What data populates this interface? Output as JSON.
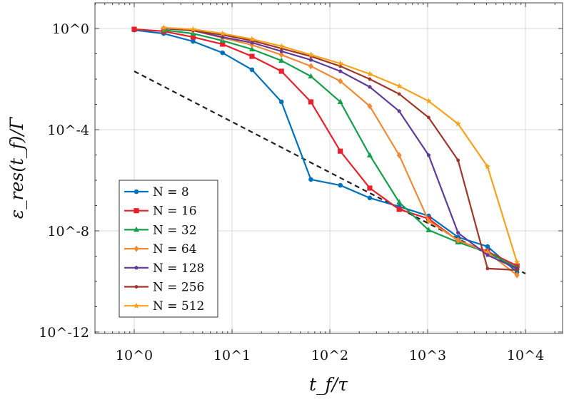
{
  "chart_data": {
    "type": "line",
    "xlabel": "t_f/τ",
    "ylabel": "ε_res(t_f)/Γ",
    "x_scale": "log",
    "y_scale": "log",
    "xlim": [
      0.4,
      25000
    ],
    "ylim": [
      8.7e-13,
      10
    ],
    "x_ticks": [
      "10^0",
      "10^1",
      "10^2",
      "10^3",
      "10^4"
    ],
    "y_ticks": [
      "10^0",
      "10^-4",
      "10^-8",
      "10^-12"
    ],
    "grid": true,
    "legend_position": "bottom-left",
    "series": [
      {
        "name": "N = 8",
        "color": "#0072bd",
        "marker": "circle",
        "x": [
          1,
          2,
          4,
          8,
          16,
          32,
          64,
          128,
          256,
          512,
          1024,
          2048,
          4096,
          8192
        ],
        "log10_y": [
          -0.06,
          -0.2,
          -0.51,
          -0.96,
          -1.63,
          -2.9,
          -5.97,
          -6.2,
          -6.7,
          -7.04,
          -7.41,
          -8.25,
          -8.62,
          -9.63
        ]
      },
      {
        "name": "N = 16",
        "color": "#e8202c",
        "marker": "square",
        "x": [
          1,
          2,
          4,
          8,
          16,
          32,
          64,
          128,
          256,
          512,
          1024,
          2048,
          4096,
          8192
        ],
        "log10_y": [
          -0.03,
          -0.11,
          -0.34,
          -0.62,
          -1.1,
          -1.69,
          -2.9,
          -4.85,
          -6.31,
          -7.15,
          -7.52,
          -8.39,
          -8.82,
          -9.38
        ]
      },
      {
        "name": "N = 32",
        "color": "#12a04a",
        "marker": "triangle",
        "x": [
          2,
          4,
          8,
          16,
          32,
          64,
          128,
          256,
          512,
          1024,
          2048,
          4096,
          8192
        ],
        "log10_y": [
          -0.06,
          -0.2,
          -0.48,
          -0.82,
          -1.27,
          -1.89,
          -2.9,
          -5.01,
          -6.87,
          -7.97,
          -8.45,
          -8.85,
          -9.46
        ]
      },
      {
        "name": "N = 64",
        "color": "#f28a35",
        "marker": "diamond",
        "x": [
          2,
          4,
          8,
          16,
          32,
          64,
          128,
          256,
          512,
          1024,
          2048,
          4096,
          8192
        ],
        "log10_y": [
          0,
          -0.08,
          -0.37,
          -0.65,
          -1.04,
          -1.49,
          -2.08,
          -3.07,
          -5.01,
          -7.61,
          -8.37,
          -8.85,
          -9.75
        ]
      },
      {
        "name": "N = 128",
        "color": "#5e3c99",
        "marker": "pentagon",
        "x": [
          2,
          4,
          8,
          16,
          32,
          64,
          128,
          256,
          512,
          1024,
          2048,
          4096,
          8192
        ],
        "log10_y": [
          0,
          -0.08,
          -0.34,
          -0.56,
          -0.9,
          -1.24,
          -1.69,
          -2.31,
          -3.27,
          -5.01,
          -8.08,
          -8.96,
          -9.49
        ]
      },
      {
        "name": "N = 256",
        "color": "#a0362a",
        "marker": "circle-small",
        "x": [
          2,
          4,
          8,
          16,
          32,
          64,
          128,
          256,
          512,
          1024,
          2048,
          4096,
          8192
        ],
        "log10_y": [
          0.03,
          -0.08,
          -0.25,
          -0.48,
          -0.79,
          -1.1,
          -1.49,
          -2.0,
          -2.59,
          -3.52,
          -5.21,
          -9.49,
          -9.55
        ]
      },
      {
        "name": "N = 512",
        "color": "#f7a21b",
        "marker": "star",
        "x": [
          2,
          4,
          8,
          16,
          32,
          64,
          128,
          256,
          512,
          1024,
          2048,
          4096,
          8192
        ],
        "log10_y": [
          0.03,
          -0.03,
          -0.2,
          -0.42,
          -0.7,
          -1.04,
          -1.38,
          -1.8,
          -2.28,
          -2.87,
          -3.77,
          -5.46,
          -9.24
        ]
      }
    ],
    "reference_line": {
      "style": "dashed",
      "color": "#222222",
      "x": [
        1,
        10000
      ],
      "log10_y": [
        -1.69,
        -9.69
      ]
    }
  }
}
